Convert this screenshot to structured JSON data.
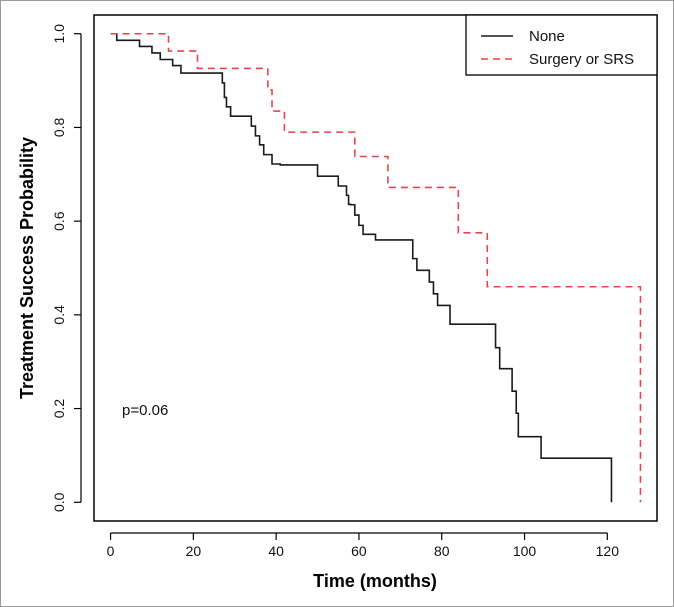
{
  "chart_data": {
    "type": "line",
    "step": true,
    "title": "",
    "xlabel": "Time (months)",
    "ylabel": "Treatment Success Probability",
    "xlim": [
      -4,
      132
    ],
    "ylim": [
      -0.04,
      1.04
    ],
    "x_ticks": [
      0,
      20,
      40,
      60,
      80,
      100,
      120
    ],
    "y_ticks": [
      0.0,
      0.2,
      0.4,
      0.6,
      0.8,
      1.0
    ],
    "x_tick_labels": [
      "0",
      "20",
      "40",
      "60",
      "80",
      "100",
      "120"
    ],
    "y_tick_labels": [
      "0.0",
      "0.2",
      "0.4",
      "0.6",
      "0.8",
      "1.0"
    ],
    "legend_position": "top-right",
    "annotation": "p=0.06",
    "series": [
      {
        "name": "None",
        "color": "#1a1a1a",
        "dash": "solid",
        "x": [
          0,
          1.5,
          7,
          10,
          12,
          15,
          17,
          27,
          27.5,
          28,
          29,
          30,
          34,
          35,
          36,
          37,
          38,
          39,
          40,
          41,
          50,
          55,
          57,
          57.5,
          58,
          59,
          60,
          61,
          64,
          73,
          74,
          77,
          78,
          79,
          82,
          85,
          93,
          94,
          96,
          97,
          98,
          98.5,
          99,
          104,
          121
        ],
        "y": [
          1.0,
          0.986,
          0.973,
          0.959,
          0.945,
          0.932,
          0.916,
          0.895,
          0.864,
          0.844,
          0.824,
          0.824,
          0.803,
          0.782,
          0.763,
          0.742,
          0.742,
          0.722,
          0.722,
          0.72,
          0.696,
          0.675,
          0.655,
          0.636,
          0.635,
          0.613,
          0.591,
          0.572,
          0.56,
          0.52,
          0.495,
          0.47,
          0.445,
          0.42,
          0.38,
          0.38,
          0.33,
          0.285,
          0.285,
          0.237,
          0.19,
          0.14,
          0.14,
          0.094,
          0.0
        ]
      },
      {
        "name": "Surgery or SRS",
        "color": "#e8424f",
        "dash": "dashed",
        "x": [
          0,
          14,
          21,
          22,
          37,
          38,
          39,
          40,
          42,
          58,
          59,
          67,
          83,
          84,
          91,
          128
        ],
        "y": [
          1.0,
          0.963,
          0.926,
          0.926,
          0.926,
          0.88,
          0.835,
          0.835,
          0.79,
          0.79,
          0.738,
          0.672,
          0.672,
          0.575,
          0.46,
          0.0
        ]
      }
    ]
  }
}
